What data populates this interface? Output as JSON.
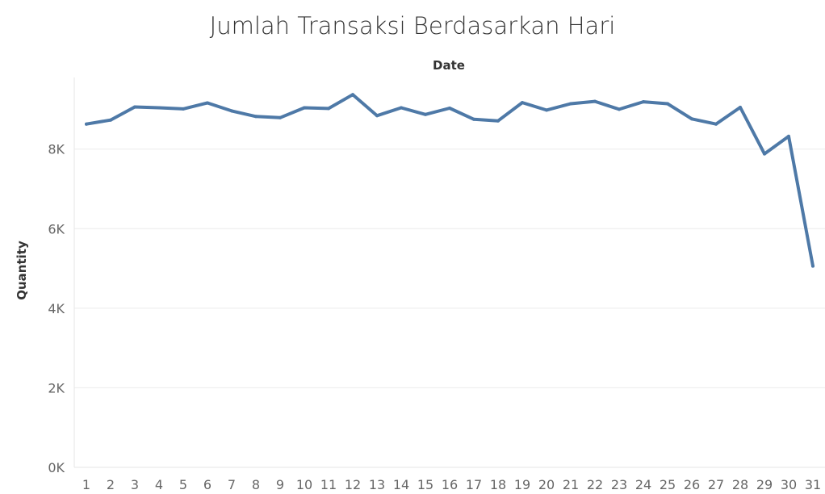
{
  "chart_data": {
    "type": "line",
    "title": "Jumlah Transaksi Berdasarkan Hari",
    "xlabel": "Date",
    "ylabel": "Quantity",
    "categories": [
      "1",
      "2",
      "3",
      "4",
      "5",
      "6",
      "7",
      "8",
      "9",
      "10",
      "11",
      "12",
      "13",
      "14",
      "15",
      "16",
      "17",
      "18",
      "19",
      "20",
      "21",
      "22",
      "23",
      "24",
      "25",
      "26",
      "27",
      "28",
      "29",
      "30",
      "31"
    ],
    "series": [
      {
        "color": "#4e79a7",
        "values": [
          8630,
          8730,
          9060,
          9040,
          9010,
          9160,
          8960,
          8820,
          8790,
          9040,
          9020,
          9370,
          8840,
          9040,
          8870,
          9030,
          8750,
          8710,
          9170,
          8980,
          9140,
          9200,
          9000,
          9190,
          9140,
          8760,
          8630,
          9050,
          7880,
          8320,
          5060
        ]
      }
    ],
    "yticks": [
      {
        "value": 0,
        "label": "0K"
      },
      {
        "value": 2000,
        "label": "2K"
      },
      {
        "value": 4000,
        "label": "4K"
      },
      {
        "value": 6000,
        "label": "6K"
      },
      {
        "value": 8000,
        "label": "8K"
      }
    ],
    "ylim": [
      0,
      9800
    ],
    "grid": true,
    "legend": "none"
  }
}
